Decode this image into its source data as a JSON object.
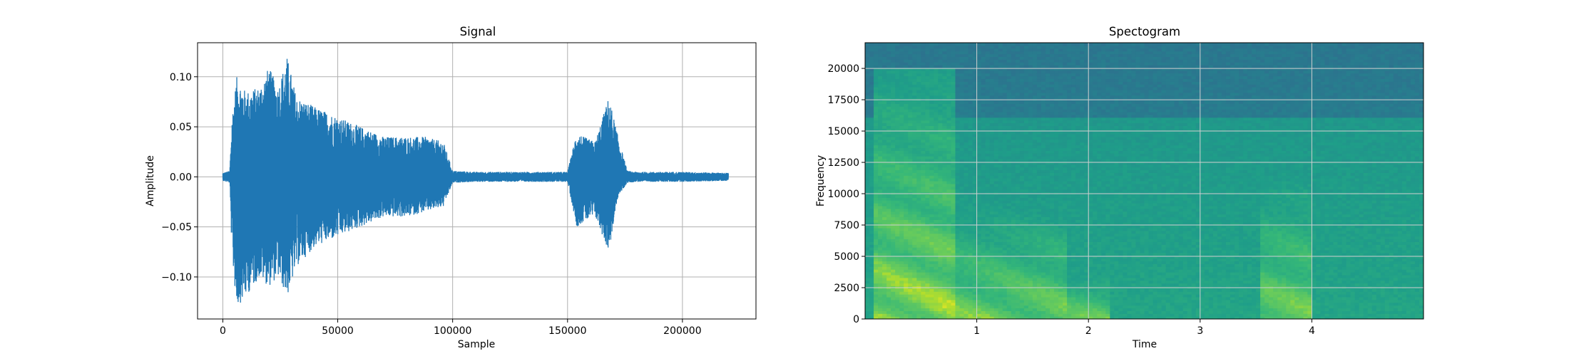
{
  "chart_data": [
    {
      "type": "line",
      "title": "Signal",
      "xlabel": "Sample",
      "ylabel": "Amplitude",
      "xlim": [
        -11000,
        232000
      ],
      "ylim": [
        -0.142,
        0.134
      ],
      "grid": true,
      "x_ticks": [
        0,
        50000,
        100000,
        150000,
        200000
      ],
      "x_tick_labels": [
        "0",
        "50000",
        "100000",
        "150000",
        "200000"
      ],
      "y_ticks": [
        0.1,
        0.05,
        0.0,
        -0.05,
        -0.1
      ],
      "y_tick_labels": [
        "0.10",
        "0.05",
        "0.00",
        "−0.05",
        "−0.10"
      ],
      "series_color": "#1f77b4",
      "envelope": {
        "x": [
          0,
          3000,
          4000,
          6000,
          10000,
          16000,
          20000,
          24000,
          28000,
          32000,
          40000,
          50000,
          60000,
          70000,
          80000,
          88000,
          96000,
          100000,
          110000,
          130000,
          150000,
          154000,
          157000,
          162000,
          168000,
          172000,
          176000,
          180000,
          200000,
          220000
        ],
        "upper": [
          0.004,
          0.006,
          0.06,
          0.1,
          0.085,
          0.09,
          0.11,
          0.09,
          0.12,
          0.08,
          0.07,
          0.06,
          0.05,
          0.04,
          0.04,
          0.04,
          0.035,
          0.006,
          0.005,
          0.005,
          0.005,
          0.045,
          0.04,
          0.035,
          0.08,
          0.04,
          0.006,
          0.005,
          0.005,
          0.004
        ],
        "lower": [
          -0.004,
          -0.006,
          -0.08,
          -0.13,
          -0.12,
          -0.1,
          -0.11,
          -0.1,
          -0.12,
          -0.09,
          -0.07,
          -0.06,
          -0.05,
          -0.04,
          -0.04,
          -0.035,
          -0.03,
          -0.006,
          -0.005,
          -0.005,
          -0.005,
          -0.05,
          -0.045,
          -0.04,
          -0.075,
          -0.02,
          -0.006,
          -0.005,
          -0.005,
          -0.004
        ]
      }
    },
    {
      "type": "heatmap",
      "title": "Spectogram",
      "xlabel": "Time",
      "ylabel": "Frequency",
      "xlim": [
        0.0,
        5.0
      ],
      "ylim": [
        0,
        22050
      ],
      "grid": true,
      "x_ticks": [
        1,
        2,
        3,
        4
      ],
      "x_tick_labels": [
        "1",
        "2",
        "3",
        "4"
      ],
      "y_ticks": [
        0,
        2500,
        5000,
        7500,
        10000,
        12500,
        15000,
        17500,
        20000
      ],
      "y_tick_labels": [
        "0",
        "2500",
        "5000",
        "7500",
        "10000",
        "12500",
        "15000",
        "17500",
        "20000"
      ],
      "colormap": "viridis",
      "events": [
        {
          "start": 0.08,
          "end": 0.8,
          "top_freq": 20000,
          "intensity": 0.95
        },
        {
          "start": 0.8,
          "end": 1.8,
          "top_freq": 9000,
          "intensity": 0.8
        },
        {
          "start": 1.8,
          "end": 2.2,
          "top_freq": 4000,
          "intensity": 0.75
        },
        {
          "start": 3.55,
          "end": 4.0,
          "top_freq": 11000,
          "intensity": 0.8
        }
      ]
    }
  ]
}
